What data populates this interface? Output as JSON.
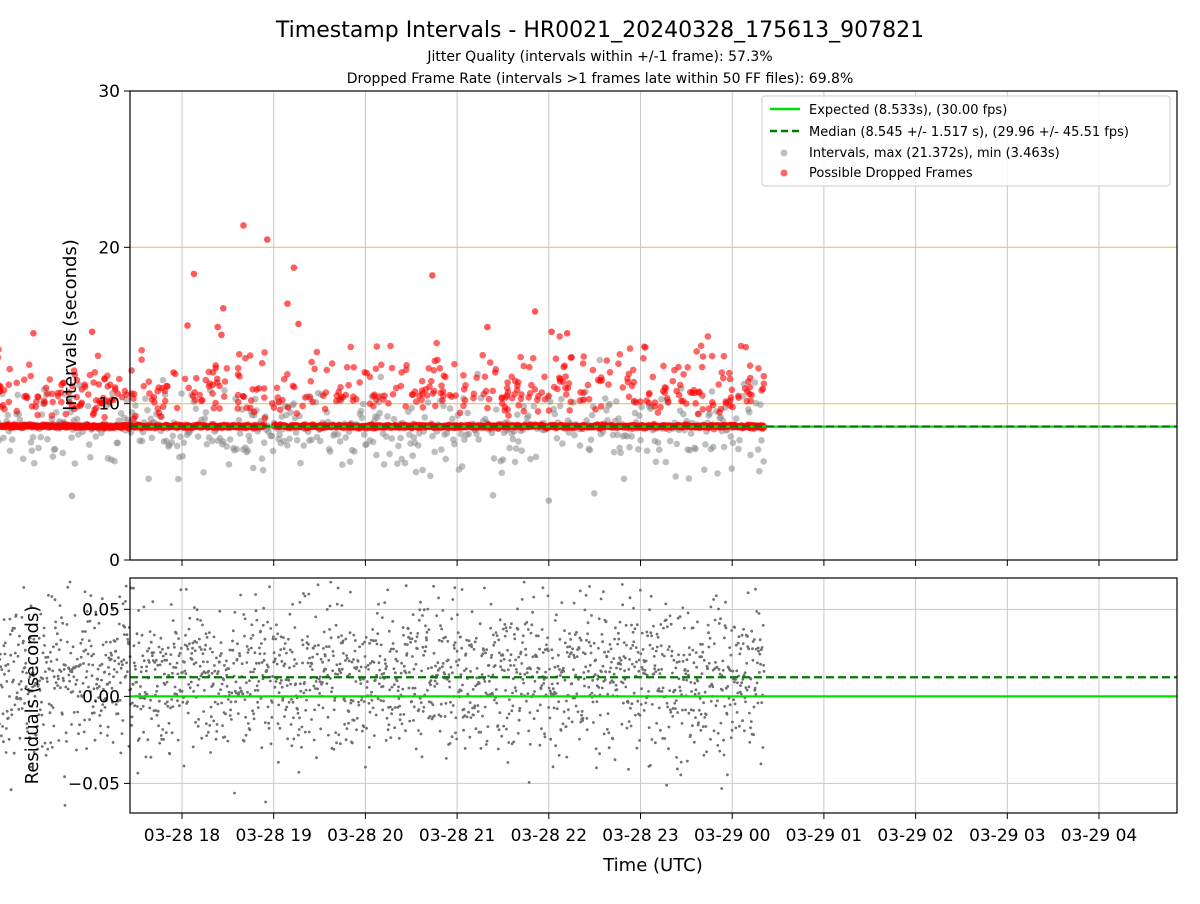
{
  "header": {
    "title": "Timestamp Intervals - HR0021_20240328_175613_907821",
    "subtitle_1": "Jitter Quality (intervals within +/-1 frame): 57.3%",
    "subtitle_2": "Dropped Frame Rate (intervals >1 frames late within 50 FF files): 69.8%"
  },
  "colors": {
    "expected": "#00e000",
    "median": "#007a00",
    "intervals": "#888888",
    "dropped": "#ff0000",
    "threshold": "#ffc04d",
    "grid": "#c8c8c8",
    "residuals": "#707070"
  },
  "chart_data": [
    {
      "type": "scatter",
      "ylabel": "Intervals (seconds)",
      "ylim": [
        0,
        30
      ],
      "yticks": [
        "0",
        "10",
        "20",
        "30"
      ],
      "grid": "vertical",
      "legend_position": "top-right",
      "reference_lines": {
        "expected": 8.533,
        "median": 8.545,
        "thresholds": [
          10,
          20
        ]
      },
      "legend": [
        "Expected (8.533s), (30.00 fps)",
        "Median (8.545 +/- 1.517 s), (29.96 +/- 45.51 fps)",
        "Intervals, max (21.372s), min (3.463s)",
        "Possible Dropped Frames"
      ],
      "series": [
        {
          "name": "Possible Dropped Frames",
          "highlights": [
            {
              "x": 0.67,
              "y": 21.4
            },
            {
              "x": 0.93,
              "y": 20.5
            },
            {
              "x": 1.22,
              "y": 18.7
            },
            {
              "x": 0.13,
              "y": 18.3
            },
            {
              "x": 2.73,
              "y": 18.2
            },
            {
              "x": 1.15,
              "y": 16.4
            },
            {
              "x": 0.45,
              "y": 16.1
            },
            {
              "x": 3.85,
              "y": 15.9
            },
            {
              "x": -2.84,
              "y": 15.1
            },
            {
              "x": 0.06,
              "y": 15.0
            },
            {
              "x": 1.27,
              "y": 15.1
            },
            {
              "x": 0.39,
              "y": 14.9
            },
            {
              "x": 3.33,
              "y": 14.9
            },
            {
              "x": -0.98,
              "y": 14.6
            },
            {
              "x": 4.03,
              "y": 14.6
            },
            {
              "x": -1.62,
              "y": 14.5
            },
            {
              "x": 4.2,
              "y": 14.5
            },
            {
              "x": 0.43,
              "y": 14.4
            }
          ]
        },
        {
          "name": "Intervals",
          "highlights": [
            {
              "x": -3.04,
              "y": 15.0
            },
            {
              "x": -3.03,
              "y": 12.7
            },
            {
              "x": -3.03,
              "y": 3.46
            },
            {
              "x": 4.0,
              "y": 3.8
            },
            {
              "x": -1.2,
              "y": 4.1
            }
          ]
        }
      ]
    },
    {
      "type": "scatter",
      "xlabel": "Time (UTC)",
      "ylabel": "Residuals (seconds)",
      "ylim": [
        -0.067,
        0.068
      ],
      "yticks": [
        "0.05",
        "0.00",
        "−0.05"
      ],
      "grid": "both",
      "reference_lines": {
        "expected": 0.0,
        "median": 0.011
      },
      "xticks": [
        "03-28 18",
        "03-28 19",
        "03-28 20",
        "03-28 21",
        "03-28 22",
        "03-28 23",
        "03-29 00",
        "03-29 01",
        "03-29 02",
        "03-29 03",
        "03-29 04"
      ]
    }
  ]
}
